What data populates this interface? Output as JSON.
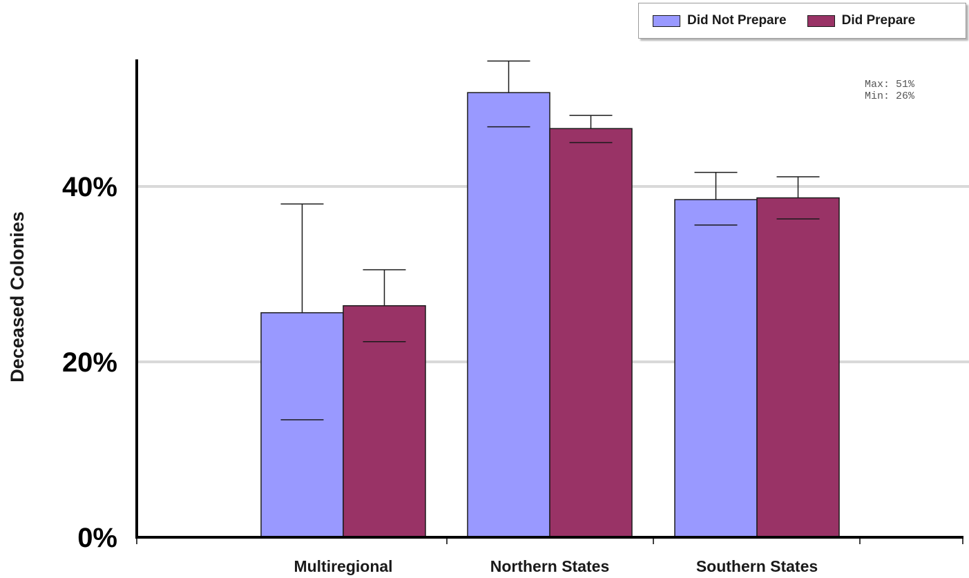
{
  "chart_data": {
    "type": "bar",
    "title": "",
    "xlabel": "",
    "ylabel": "Deceased Colonies",
    "ylim": [
      0,
      54.5
    ],
    "yticks": [
      {
        "value": 0,
        "label": "0%"
      },
      {
        "value": 20,
        "label": "20%"
      },
      {
        "value": 40,
        "label": "40%"
      }
    ],
    "grid": true,
    "legend_position": "top-right",
    "categories": [
      "Multiregional",
      "Northern States",
      "Southern States"
    ],
    "series": [
      {
        "name": "Did Not Prepare",
        "color": "#9999ff",
        "values": [
          25.6,
          50.7,
          38.5
        ],
        "error_low": [
          13.4,
          46.8,
          35.6
        ],
        "error_high": [
          38.0,
          54.3,
          41.6
        ]
      },
      {
        "name": "Did Prepare",
        "color": "#993366",
        "values": [
          26.4,
          46.6,
          38.7
        ],
        "error_low": [
          22.3,
          45.0,
          36.3
        ],
        "error_high": [
          30.5,
          48.1,
          41.1
        ]
      }
    ],
    "annotations": {
      "max_label": "Max: 51%",
      "min_label": "Min: 26%"
    }
  }
}
